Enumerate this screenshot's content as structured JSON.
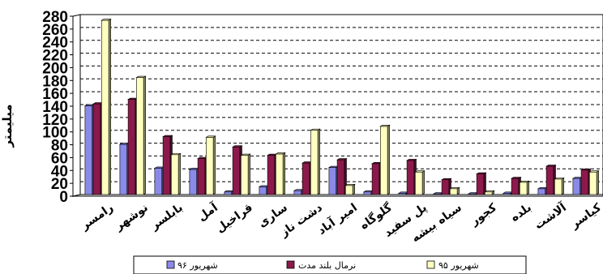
{
  "chart_data": {
    "type": "bar",
    "ylabel": "میلیمتر",
    "ylim": [
      0,
      280
    ],
    "yticks": [
      0,
      20,
      40,
      60,
      80,
      100,
      120,
      140,
      160,
      180,
      200,
      220,
      240,
      260,
      280
    ],
    "grid": true,
    "legend_position": "bottom",
    "categories": [
      "رامسر",
      "نوشهر",
      "بابلسر",
      "آمل",
      "قراخیل",
      "ساری",
      "دشت ناز",
      "امیر آباد",
      "گلوگاه",
      "پل سفید",
      "سیاه بیشه",
      "کجور",
      "بلده",
      "آلاشت",
      "کیاسر"
    ],
    "series": [
      {
        "name": "شهریور ۹۶",
        "color": "#8a8ae8",
        "values": [
          138,
          78,
          41,
          39,
          4,
          12,
          6,
          42,
          4,
          2,
          1,
          1,
          2,
          9,
          25
        ]
      },
      {
        "name": "نرمال بلند مدت",
        "color": "#8b1a4b",
        "values": [
          141,
          148,
          90,
          56,
          74,
          61,
          49,
          54,
          48,
          53,
          23,
          32,
          25,
          44,
          38
        ]
      },
      {
        "name": "شهریور ۹۵",
        "color": "#ffffc0",
        "values": [
          271,
          182,
          62,
          89,
          61,
          63,
          100,
          14,
          106,
          35,
          9,
          4,
          19,
          24,
          35
        ]
      }
    ]
  }
}
